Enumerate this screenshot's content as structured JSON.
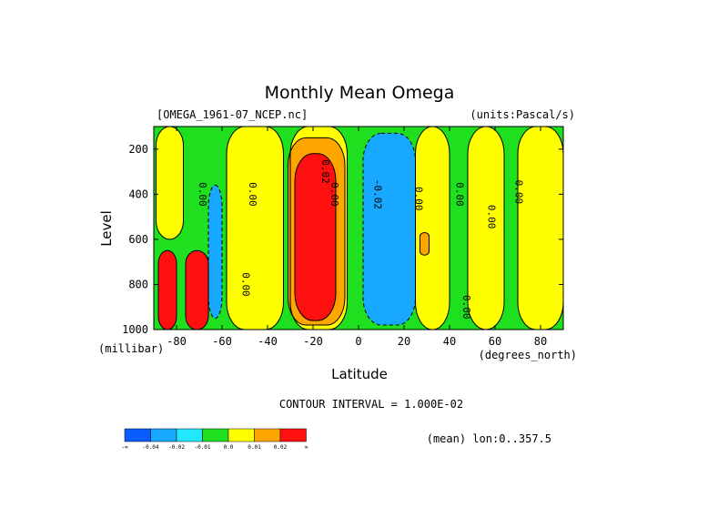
{
  "chart_data": {
    "type": "contour",
    "title": "Monthly Mean Omega",
    "file_label": "[OMEGA_1961-07_NCEP.nc]",
    "units_label": "(units:Pascal/s)",
    "xlabel": "Latitude",
    "x_unit_label": "(degrees_north)",
    "ylabel": "Level",
    "y_unit_label": "(millibar)",
    "xlim": [
      -90,
      90
    ],
    "ylim": [
      1000,
      100
    ],
    "x_ticks": [
      -80,
      -60,
      -40,
      -20,
      0,
      20,
      40,
      60,
      80
    ],
    "y_ticks": [
      200,
      400,
      600,
      800,
      1000
    ],
    "contour_interval_text": "CONTOUR INTERVAL = 1.000E-02",
    "mean_note": "(mean) lon:0..357.5",
    "colorbar": {
      "levels": [
        "-∞",
        "-0.04",
        "-0.02",
        "-0.01",
        "0.0",
        "0.01",
        "0.02",
        "∞"
      ],
      "colors": [
        "#0a5cff",
        "#19a8ff",
        "#22e8ff",
        "#1ee01e",
        "#ffff00",
        "#ffa500",
        "#ff1010"
      ]
    },
    "contour_labels": [
      {
        "text": "0.00",
        "lat": -70,
        "level": 400
      },
      {
        "text": "0.00",
        "lat": -48,
        "level": 400
      },
      {
        "text": "0.02",
        "lat": -16,
        "level": 300
      },
      {
        "text": "0.00",
        "lat": -12,
        "level": 400
      },
      {
        "text": "-0.02",
        "lat": 7,
        "level": 400
      },
      {
        "text": "0.00",
        "lat": 25,
        "level": 420
      },
      {
        "text": "0.00",
        "lat": 43,
        "level": 400
      },
      {
        "text": "0.00",
        "lat": 57,
        "level": 500
      },
      {
        "text": "0.00",
        "lat": 69,
        "level": 390
      },
      {
        "text": "0.00",
        "lat": -51,
        "level": 800
      },
      {
        "text": "0.00",
        "lat": 46,
        "level": 900
      }
    ],
    "regions": [
      {
        "value_class": "neg_small",
        "lat_min": -90,
        "lat_max": 90,
        "level_min": 100,
        "level_max": 1000
      },
      {
        "value_class": "zero",
        "lat_min": -89,
        "lat_max": -77,
        "level_min": 100,
        "level_max": 600
      },
      {
        "value_class": "zero",
        "lat_min": -58,
        "lat_max": -33,
        "level_min": 100,
        "level_max": 1000
      },
      {
        "value_class": "zero",
        "lat_min": -30,
        "lat_max": -5,
        "level_min": 100,
        "level_max": 1000
      },
      {
        "value_class": "zero",
        "lat_min": 25,
        "lat_max": 40,
        "level_min": 100,
        "level_max": 1000
      },
      {
        "value_class": "zero",
        "lat_min": 48,
        "lat_max": 64,
        "level_min": 100,
        "level_max": 1000
      },
      {
        "value_class": "zero",
        "lat_min": 70,
        "lat_max": 90,
        "level_min": 100,
        "level_max": 1000
      },
      {
        "value_class": "pos_small",
        "lat_min": -31,
        "lat_max": -6,
        "level_min": 150,
        "level_max": 980
      },
      {
        "value_class": "pos_large",
        "lat_min": -28,
        "lat_max": -10,
        "level_min": 220,
        "level_max": 960
      },
      {
        "value_class": "neg_mid",
        "lat_min": 2,
        "lat_max": 25,
        "level_min": 130,
        "level_max": 980
      },
      {
        "value_class": "neg_mid",
        "lat_min": -66,
        "lat_max": -60,
        "level_min": 360,
        "level_max": 950
      },
      {
        "value_class": "pos_large",
        "lat_min": -76,
        "lat_max": -66,
        "level_min": 650,
        "level_max": 1000
      },
      {
        "value_class": "pos_large",
        "lat_min": -88,
        "lat_max": -80,
        "level_min": 650,
        "level_max": 1000
      },
      {
        "value_class": "pos_small",
        "lat_min": 27,
        "lat_max": 31,
        "level_min": 570,
        "level_max": 670
      }
    ]
  }
}
